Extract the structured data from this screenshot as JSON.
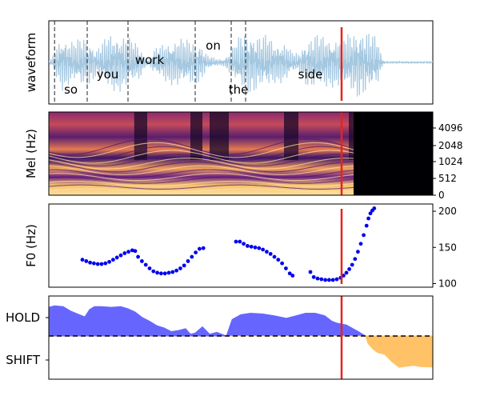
{
  "chart_data": [
    {
      "type": "line",
      "panel": "waveform",
      "ylabel": "waveform",
      "xlim": [
        0,
        8.0
      ],
      "envelope": [
        [
          0.0,
          0.05
        ],
        [
          0.08,
          0.15
        ],
        [
          0.16,
          0.45
        ],
        [
          0.28,
          0.75
        ],
        [
          0.42,
          0.6
        ],
        [
          0.55,
          0.55
        ],
        [
          0.7,
          0.7
        ],
        [
          0.85,
          0.6
        ],
        [
          1.0,
          0.35
        ],
        [
          1.12,
          0.55
        ],
        [
          1.25,
          0.75
        ],
        [
          1.45,
          0.8
        ],
        [
          1.6,
          0.7
        ],
        [
          1.75,
          0.6
        ],
        [
          1.9,
          0.45
        ],
        [
          2.0,
          0.15
        ],
        [
          2.08,
          0.05
        ],
        [
          2.2,
          0.35
        ],
        [
          2.45,
          0.55
        ],
        [
          2.7,
          0.65
        ],
        [
          2.95,
          0.6
        ],
        [
          3.15,
          0.55
        ],
        [
          3.3,
          0.2
        ],
        [
          3.5,
          0.1
        ],
        [
          3.65,
          0.1
        ],
        [
          3.8,
          0.35
        ],
        [
          4.0,
          0.75
        ],
        [
          4.2,
          0.85
        ],
        [
          4.4,
          0.7
        ],
        [
          4.55,
          0.75
        ],
        [
          4.7,
          0.55
        ],
        [
          4.85,
          0.55
        ],
        [
          4.95,
          0.5
        ],
        [
          5.05,
          0.3
        ],
        [
          5.2,
          0.25
        ],
        [
          5.35,
          0.6
        ],
        [
          5.55,
          0.75
        ],
        [
          5.75,
          0.7
        ],
        [
          5.95,
          0.65
        ],
        [
          6.15,
          0.7
        ],
        [
          6.3,
          0.8
        ],
        [
          6.45,
          0.95
        ],
        [
          6.6,
          0.85
        ],
        [
          6.75,
          0.75
        ],
        [
          6.85,
          0.65
        ],
        [
          6.95,
          0.1
        ],
        [
          7.0,
          0.02
        ],
        [
          8.0,
          0.02
        ]
      ],
      "words": [
        {
          "text": "so",
          "start": 0.12,
          "end": 0.8,
          "level": "low"
        },
        {
          "text": "you",
          "start": 0.8,
          "end": 1.65,
          "level": "mid"
        },
        {
          "text": "work",
          "start": 1.65,
          "end": 3.05,
          "level": "high"
        },
        {
          "text": "on",
          "start": 3.05,
          "end": 3.8,
          "level": "top"
        },
        {
          "text": "the",
          "start": 3.8,
          "end": 4.1,
          "level": "low"
        },
        {
          "text": "side",
          "start": 4.1,
          "end": 6.95,
          "level": "mid"
        }
      ],
      "marker_x": 6.1,
      "color": "#a5c8e1",
      "marker_color": "#e8231c"
    },
    {
      "type": "heatmap",
      "panel": "mel",
      "ylabel": "Mel (Hz)",
      "yticks": [
        "0",
        "512",
        "1024",
        "2048",
        "4096"
      ],
      "xlim": [
        0,
        8.0
      ],
      "silence_from": 6.35,
      "marker_x": 6.1
    },
    {
      "type": "scatter",
      "panel": "f0",
      "ylabel": "F0 (Hz)",
      "yticks": [
        "100",
        "150",
        "200"
      ],
      "ylim": [
        95,
        210
      ],
      "xlim": [
        0,
        8.0
      ],
      "point_color": "#0000ee",
      "marker_x": 6.1,
      "segments": [
        [
          [
            0.7,
            133
          ],
          [
            0.78,
            131
          ],
          [
            0.86,
            129
          ],
          [
            0.94,
            128
          ],
          [
            1.02,
            127
          ],
          [
            1.1,
            127
          ],
          [
            1.18,
            128
          ],
          [
            1.26,
            130
          ],
          [
            1.34,
            133
          ],
          [
            1.42,
            136
          ],
          [
            1.5,
            139
          ],
          [
            1.58,
            142
          ],
          [
            1.66,
            144
          ],
          [
            1.74,
            146
          ],
          [
            1.8,
            145
          ]
        ],
        [
          [
            1.86,
            137
          ],
          [
            1.94,
            131
          ],
          [
            2.02,
            126
          ],
          [
            2.1,
            121
          ],
          [
            2.18,
            117
          ],
          [
            2.26,
            115
          ],
          [
            2.34,
            114
          ],
          [
            2.42,
            114
          ],
          [
            2.5,
            115
          ],
          [
            2.58,
            116
          ],
          [
            2.66,
            118
          ],
          [
            2.74,
            121
          ],
          [
            2.82,
            125
          ],
          [
            2.9,
            131
          ],
          [
            2.98,
            137
          ],
          [
            3.06,
            143
          ],
          [
            3.14,
            148
          ],
          [
            3.22,
            149
          ]
        ],
        [
          [
            3.9,
            158
          ],
          [
            3.98,
            158
          ],
          [
            4.06,
            155
          ],
          [
            4.14,
            152
          ],
          [
            4.22,
            151
          ],
          [
            4.3,
            150
          ],
          [
            4.38,
            149
          ],
          [
            4.46,
            147
          ],
          [
            4.54,
            144
          ],
          [
            4.62,
            141
          ],
          [
            4.7,
            137
          ],
          [
            4.78,
            133
          ],
          [
            4.86,
            128
          ],
          [
            4.94,
            121
          ],
          [
            5.02,
            114
          ],
          [
            5.08,
            111
          ]
        ],
        [
          [
            5.45,
            116
          ],
          [
            5.52,
            109
          ],
          [
            5.6,
            107
          ],
          [
            5.68,
            106
          ],
          [
            5.76,
            105
          ],
          [
            5.84,
            105
          ],
          [
            5.92,
            105
          ],
          [
            6.0,
            106
          ],
          [
            6.08,
            108
          ],
          [
            6.14,
            111
          ],
          [
            6.2,
            115
          ],
          [
            6.26,
            120
          ],
          [
            6.32,
            126
          ],
          [
            6.38,
            134
          ],
          [
            6.44,
            144
          ],
          [
            6.5,
            155
          ],
          [
            6.56,
            167
          ],
          [
            6.62,
            180
          ],
          [
            6.66,
            190
          ],
          [
            6.7,
            197
          ],
          [
            6.74,
            201
          ],
          [
            6.78,
            204
          ]
        ]
      ]
    },
    {
      "type": "area",
      "panel": "turn",
      "yticks": [
        "HOLD",
        "SHIFT"
      ],
      "ylim": [
        -1,
        1
      ],
      "xlim": [
        0,
        8.0
      ],
      "hold_color": "#6666ff",
      "shift_color": "#ffc266",
      "baseline_style": "dashed",
      "marker_x": 6.1,
      "values": [
        [
          0.0,
          0.78
        ],
        [
          0.12,
          0.82
        ],
        [
          0.3,
          0.8
        ],
        [
          0.45,
          0.68
        ],
        [
          0.6,
          0.6
        ],
        [
          0.75,
          0.52
        ],
        [
          0.85,
          0.72
        ],
        [
          0.95,
          0.8
        ],
        [
          1.1,
          0.8
        ],
        [
          1.3,
          0.78
        ],
        [
          1.5,
          0.8
        ],
        [
          1.65,
          0.74
        ],
        [
          1.8,
          0.65
        ],
        [
          1.95,
          0.5
        ],
        [
          2.1,
          0.4
        ],
        [
          2.25,
          0.28
        ],
        [
          2.4,
          0.22
        ],
        [
          2.55,
          0.12
        ],
        [
          2.7,
          0.15
        ],
        [
          2.85,
          0.2
        ],
        [
          2.95,
          0.05
        ],
        [
          3.05,
          0.08
        ],
        [
          3.2,
          0.25
        ],
        [
          3.35,
          0.05
        ],
        [
          3.5,
          0.1
        ],
        [
          3.7,
          0.0
        ],
        [
          3.82,
          0.45
        ],
        [
          4.0,
          0.58
        ],
        [
          4.2,
          0.62
        ],
        [
          4.45,
          0.6
        ],
        [
          4.7,
          0.55
        ],
        [
          4.95,
          0.48
        ],
        [
          5.15,
          0.55
        ],
        [
          5.35,
          0.62
        ],
        [
          5.55,
          0.62
        ],
        [
          5.75,
          0.55
        ],
        [
          5.9,
          0.4
        ],
        [
          6.0,
          0.35
        ],
        [
          6.2,
          0.3
        ],
        [
          6.45,
          0.12
        ],
        [
          6.6,
          0.0
        ],
        [
          6.65,
          -0.2
        ],
        [
          6.75,
          -0.35
        ],
        [
          6.85,
          -0.45
        ],
        [
          7.0,
          -0.5
        ],
        [
          7.15,
          -0.7
        ],
        [
          7.3,
          -0.85
        ],
        [
          7.45,
          -0.82
        ],
        [
          7.6,
          -0.8
        ],
        [
          7.75,
          -0.83
        ],
        [
          7.9,
          -0.84
        ],
        [
          8.0,
          -0.84
        ]
      ]
    }
  ]
}
